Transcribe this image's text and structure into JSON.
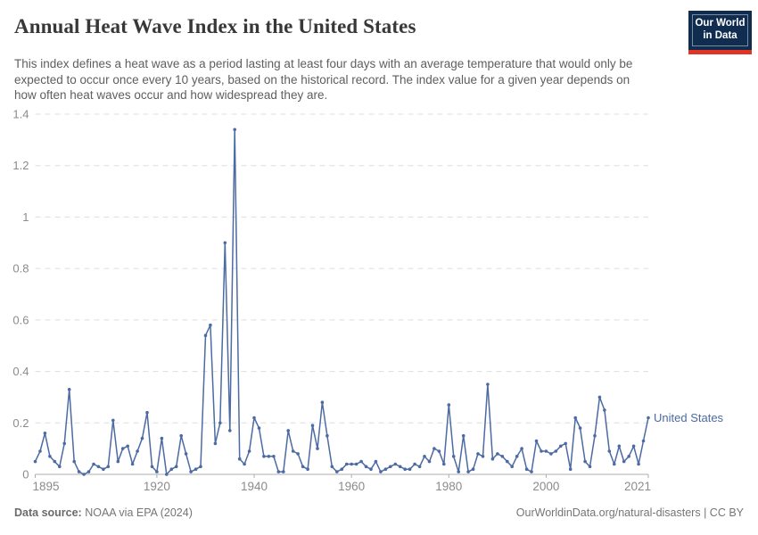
{
  "header": {
    "title": "Annual Heat Wave Index in the United States",
    "subtitle": "This index defines a heat wave as a period lasting at least four days with an average temperature that would only be expected to occur once every 10 years, based on the historical record. The index value for a given year depends on how often heat waves occur and how widespread they are.",
    "logo": {
      "line1": "Our World",
      "line2": "in Data"
    }
  },
  "footer": {
    "source_label": "Data source:",
    "source_value": " NOAA via EPA (2024)",
    "right_text": "OurWorldinData.org/natural-disasters | CC BY"
  },
  "colors": {
    "line": "#4C6AA3",
    "grid": "#DEDEDE",
    "axis": "#ADADAD",
    "tick_text": "#8B8B8B",
    "title_text": "#383838",
    "subtitle_text": "#5E5E5E",
    "footer_text": "#757575",
    "logo_navy": "#102D50",
    "logo_red": "#E03426"
  },
  "chart_data": {
    "type": "line",
    "title": "Annual Heat Wave Index in the United States",
    "series_label": "United States",
    "legend_position": "right-of-last-point",
    "grid": "horizontal-dashed",
    "markers": true,
    "xlim": [
      1895,
      2021
    ],
    "ylim": [
      0,
      1.4
    ],
    "x_ticks": [
      1895,
      1920,
      1940,
      1960,
      1980,
      2000,
      2021
    ],
    "y_ticks": [
      0,
      0.2,
      0.4,
      0.6,
      0.8,
      1,
      1.2,
      1.4
    ],
    "y_tick_labels": [
      "0",
      "0.2",
      "0.4",
      "0.6",
      "0.8",
      "1",
      "1.2",
      "1.4"
    ],
    "x": [
      1895,
      1896,
      1897,
      1898,
      1899,
      1900,
      1901,
      1902,
      1903,
      1904,
      1905,
      1906,
      1907,
      1908,
      1909,
      1910,
      1911,
      1912,
      1913,
      1914,
      1915,
      1916,
      1917,
      1918,
      1919,
      1920,
      1921,
      1922,
      1923,
      1924,
      1925,
      1926,
      1927,
      1928,
      1929,
      1930,
      1931,
      1932,
      1933,
      1934,
      1935,
      1936,
      1937,
      1938,
      1939,
      1940,
      1941,
      1942,
      1943,
      1944,
      1945,
      1946,
      1947,
      1948,
      1949,
      1950,
      1951,
      1952,
      1953,
      1954,
      1955,
      1956,
      1957,
      1958,
      1959,
      1960,
      1961,
      1962,
      1963,
      1964,
      1965,
      1966,
      1967,
      1968,
      1969,
      1970,
      1971,
      1972,
      1973,
      1974,
      1975,
      1976,
      1977,
      1978,
      1979,
      1980,
      1981,
      1982,
      1983,
      1984,
      1985,
      1986,
      1987,
      1988,
      1989,
      1990,
      1991,
      1992,
      1993,
      1994,
      1995,
      1996,
      1997,
      1998,
      1999,
      2000,
      2001,
      2002,
      2003,
      2004,
      2005,
      2006,
      2007,
      2008,
      2009,
      2010,
      2011,
      2012,
      2013,
      2014,
      2015,
      2016,
      2017,
      2018,
      2019,
      2020,
      2021
    ],
    "values": [
      0.05,
      0.09,
      0.16,
      0.07,
      0.05,
      0.03,
      0.12,
      0.33,
      0.05,
      0.01,
      0.0,
      0.01,
      0.04,
      0.03,
      0.02,
      0.03,
      0.21,
      0.05,
      0.1,
      0.11,
      0.04,
      0.09,
      0.14,
      0.24,
      0.03,
      0.01,
      0.14,
      0.0,
      0.02,
      0.03,
      0.15,
      0.08,
      0.01,
      0.02,
      0.03,
      0.54,
      0.58,
      0.12,
      0.2,
      0.9,
      0.17,
      1.34,
      0.06,
      0.04,
      0.09,
      0.22,
      0.18,
      0.07,
      0.07,
      0.07,
      0.01,
      0.01,
      0.17,
      0.09,
      0.08,
      0.03,
      0.02,
      0.19,
      0.1,
      0.28,
      0.15,
      0.03,
      0.01,
      0.02,
      0.04,
      0.04,
      0.04,
      0.05,
      0.03,
      0.02,
      0.05,
      0.01,
      0.02,
      0.03,
      0.04,
      0.03,
      0.02,
      0.02,
      0.04,
      0.03,
      0.07,
      0.05,
      0.1,
      0.09,
      0.04,
      0.27,
      0.07,
      0.01,
      0.15,
      0.01,
      0.02,
      0.08,
      0.07,
      0.35,
      0.06,
      0.08,
      0.07,
      0.05,
      0.03,
      0.07,
      0.1,
      0.02,
      0.01,
      0.13,
      0.09,
      0.09,
      0.08,
      0.09,
      0.11,
      0.12,
      0.02,
      0.22,
      0.18,
      0.05,
      0.03,
      0.15,
      0.3,
      0.25,
      0.09,
      0.04,
      0.11,
      0.05,
      0.07,
      0.11,
      0.04,
      0.13,
      0.22
    ]
  }
}
